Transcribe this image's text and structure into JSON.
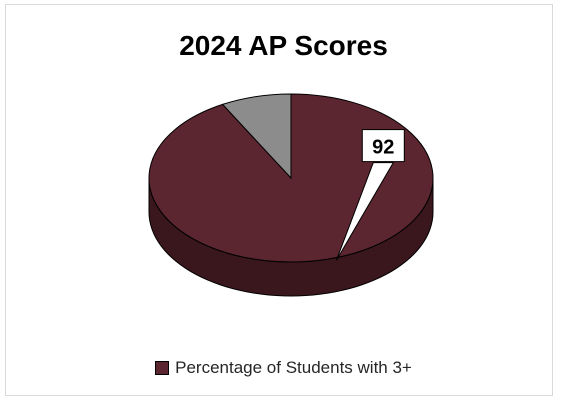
{
  "chart_data": {
    "type": "pie",
    "title": "2024 AP Scores",
    "slices": [
      {
        "label": "Percentage of Students with 3+",
        "value": 92,
        "color": "#5b2630",
        "data_label": "92",
        "in_legend": true
      },
      {
        "label": "",
        "value": 8,
        "color": "#8c8c8c",
        "data_label": "",
        "in_legend": false
      }
    ],
    "legend": {
      "position": "bottom",
      "entries": [
        "Percentage of Students with 3+"
      ]
    },
    "style": "3d",
    "colors": {
      "primary": "#5b2630",
      "primary_side": "#3a161d",
      "secondary": "#8c8c8c",
      "secondary_side": "#5a5a5a"
    }
  }
}
